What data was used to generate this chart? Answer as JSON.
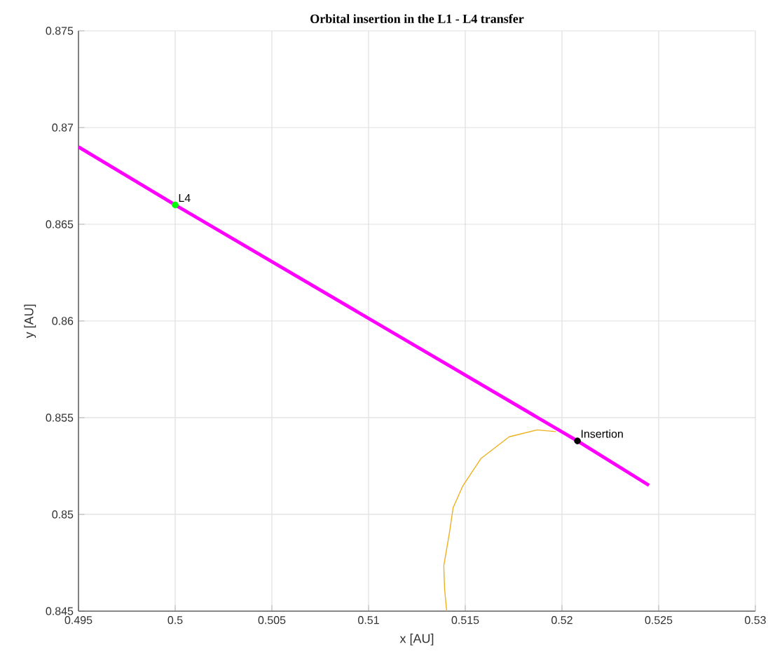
{
  "chart_data": {
    "type": "line",
    "title": "Orbital insertion in the L1 - L4 transfer",
    "xlabel": "x [AU]",
    "ylabel": "y [AU]",
    "xlim": [
      0.495,
      0.53
    ],
    "ylim": [
      0.845,
      0.875
    ],
    "xticks": [
      0.495,
      0.5,
      0.505,
      0.51,
      0.515,
      0.52,
      0.525,
      0.53
    ],
    "yticks": [
      0.845,
      0.85,
      0.855,
      0.86,
      0.865,
      0.87,
      0.875
    ],
    "grid": true,
    "series": [
      {
        "color": "#ff00ff",
        "x": [
          0.495,
          0.5,
          0.5208,
          0.5245
        ],
        "values": [
          0.869,
          0.866,
          0.8538,
          0.8515
        ]
      },
      {
        "color": "#edb120",
        "x": [
          0.51404,
          0.51393,
          0.51389,
          0.51418,
          0.51437,
          0.51486,
          0.51582,
          0.51727,
          0.51872,
          0.51969
        ],
        "values": [
          0.845,
          0.84614,
          0.84735,
          0.84904,
          0.85034,
          0.85145,
          0.8529,
          0.85401,
          0.85437,
          0.85428
        ]
      },
      {
        "type": "scatter",
        "marker": "circle",
        "color": "#00ff00",
        "x": [
          0.5
        ],
        "values": [
          0.866
        ]
      },
      {
        "type": "scatter",
        "marker": "circle",
        "color": "#000000",
        "x": [
          0.5208
        ],
        "values": [
          0.8538
        ]
      }
    ],
    "annotations": [
      {
        "text": "L4",
        "x": 0.5,
        "y": 0.866
      },
      {
        "text": "Insertion",
        "x": 0.5208,
        "y": 0.8538
      }
    ]
  }
}
